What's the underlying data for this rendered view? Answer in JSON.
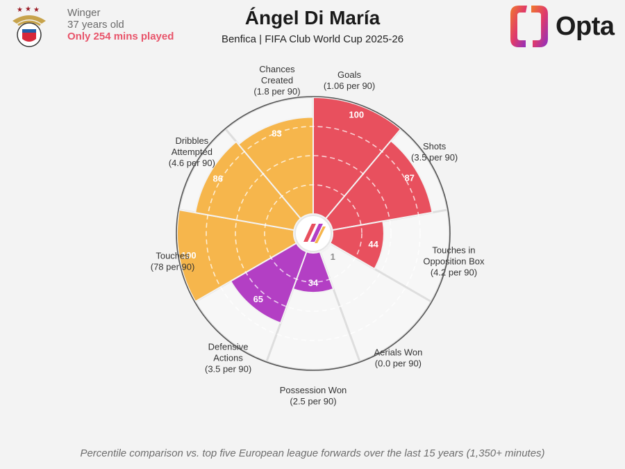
{
  "player": {
    "position": "Winger",
    "age": "37 years old",
    "minutes": "Only 254 mins played"
  },
  "title": "Ángel Di María",
  "subtitle": "Benfica | FIFA Club World Cup 2025-26",
  "brand": "Opta",
  "footnote": "Percentile comparison vs. top five European league forwards over the last 15 years (1,350+ minutes)",
  "colors": {
    "attacking": "#e8505e",
    "possession": "#f6b64c",
    "defending": "#b33fc4",
    "inner_ring": "#f8e3e6"
  },
  "chart_data": {
    "type": "polar-bar",
    "range": [
      0,
      100
    ],
    "start": "Goals at top, clockwise",
    "series": [
      {
        "metric": "Goals",
        "detail": "(1.06 per 90)",
        "value": 100,
        "group": "attacking"
      },
      {
        "metric": "Shots",
        "detail": "(3.5 per 90)",
        "value": 87,
        "group": "attacking"
      },
      {
        "metric": "Touches in Opposition Box",
        "detail": "(4.2 per 90)",
        "value": 44,
        "group": "attacking"
      },
      {
        "metric": "Aerials Won",
        "detail": "(0.0 per 90)",
        "value": 1,
        "group": "defending"
      },
      {
        "metric": "Possession Won",
        "detail": "(2.5 per 90)",
        "value": 34,
        "group": "defending"
      },
      {
        "metric": "Defensive Actions",
        "detail": "(3.5 per 90)",
        "value": 65,
        "group": "defending"
      },
      {
        "metric": "Touches",
        "detail": "(78 per 90)",
        "value": 100,
        "group": "possession"
      },
      {
        "metric": "Dribbles Attempted",
        "detail": "(4.6 per 90)",
        "value": 86,
        "group": "possession"
      },
      {
        "metric": "Chances Created",
        "detail": "(1.8 per 90)",
        "value": 83,
        "group": "possession"
      }
    ]
  }
}
